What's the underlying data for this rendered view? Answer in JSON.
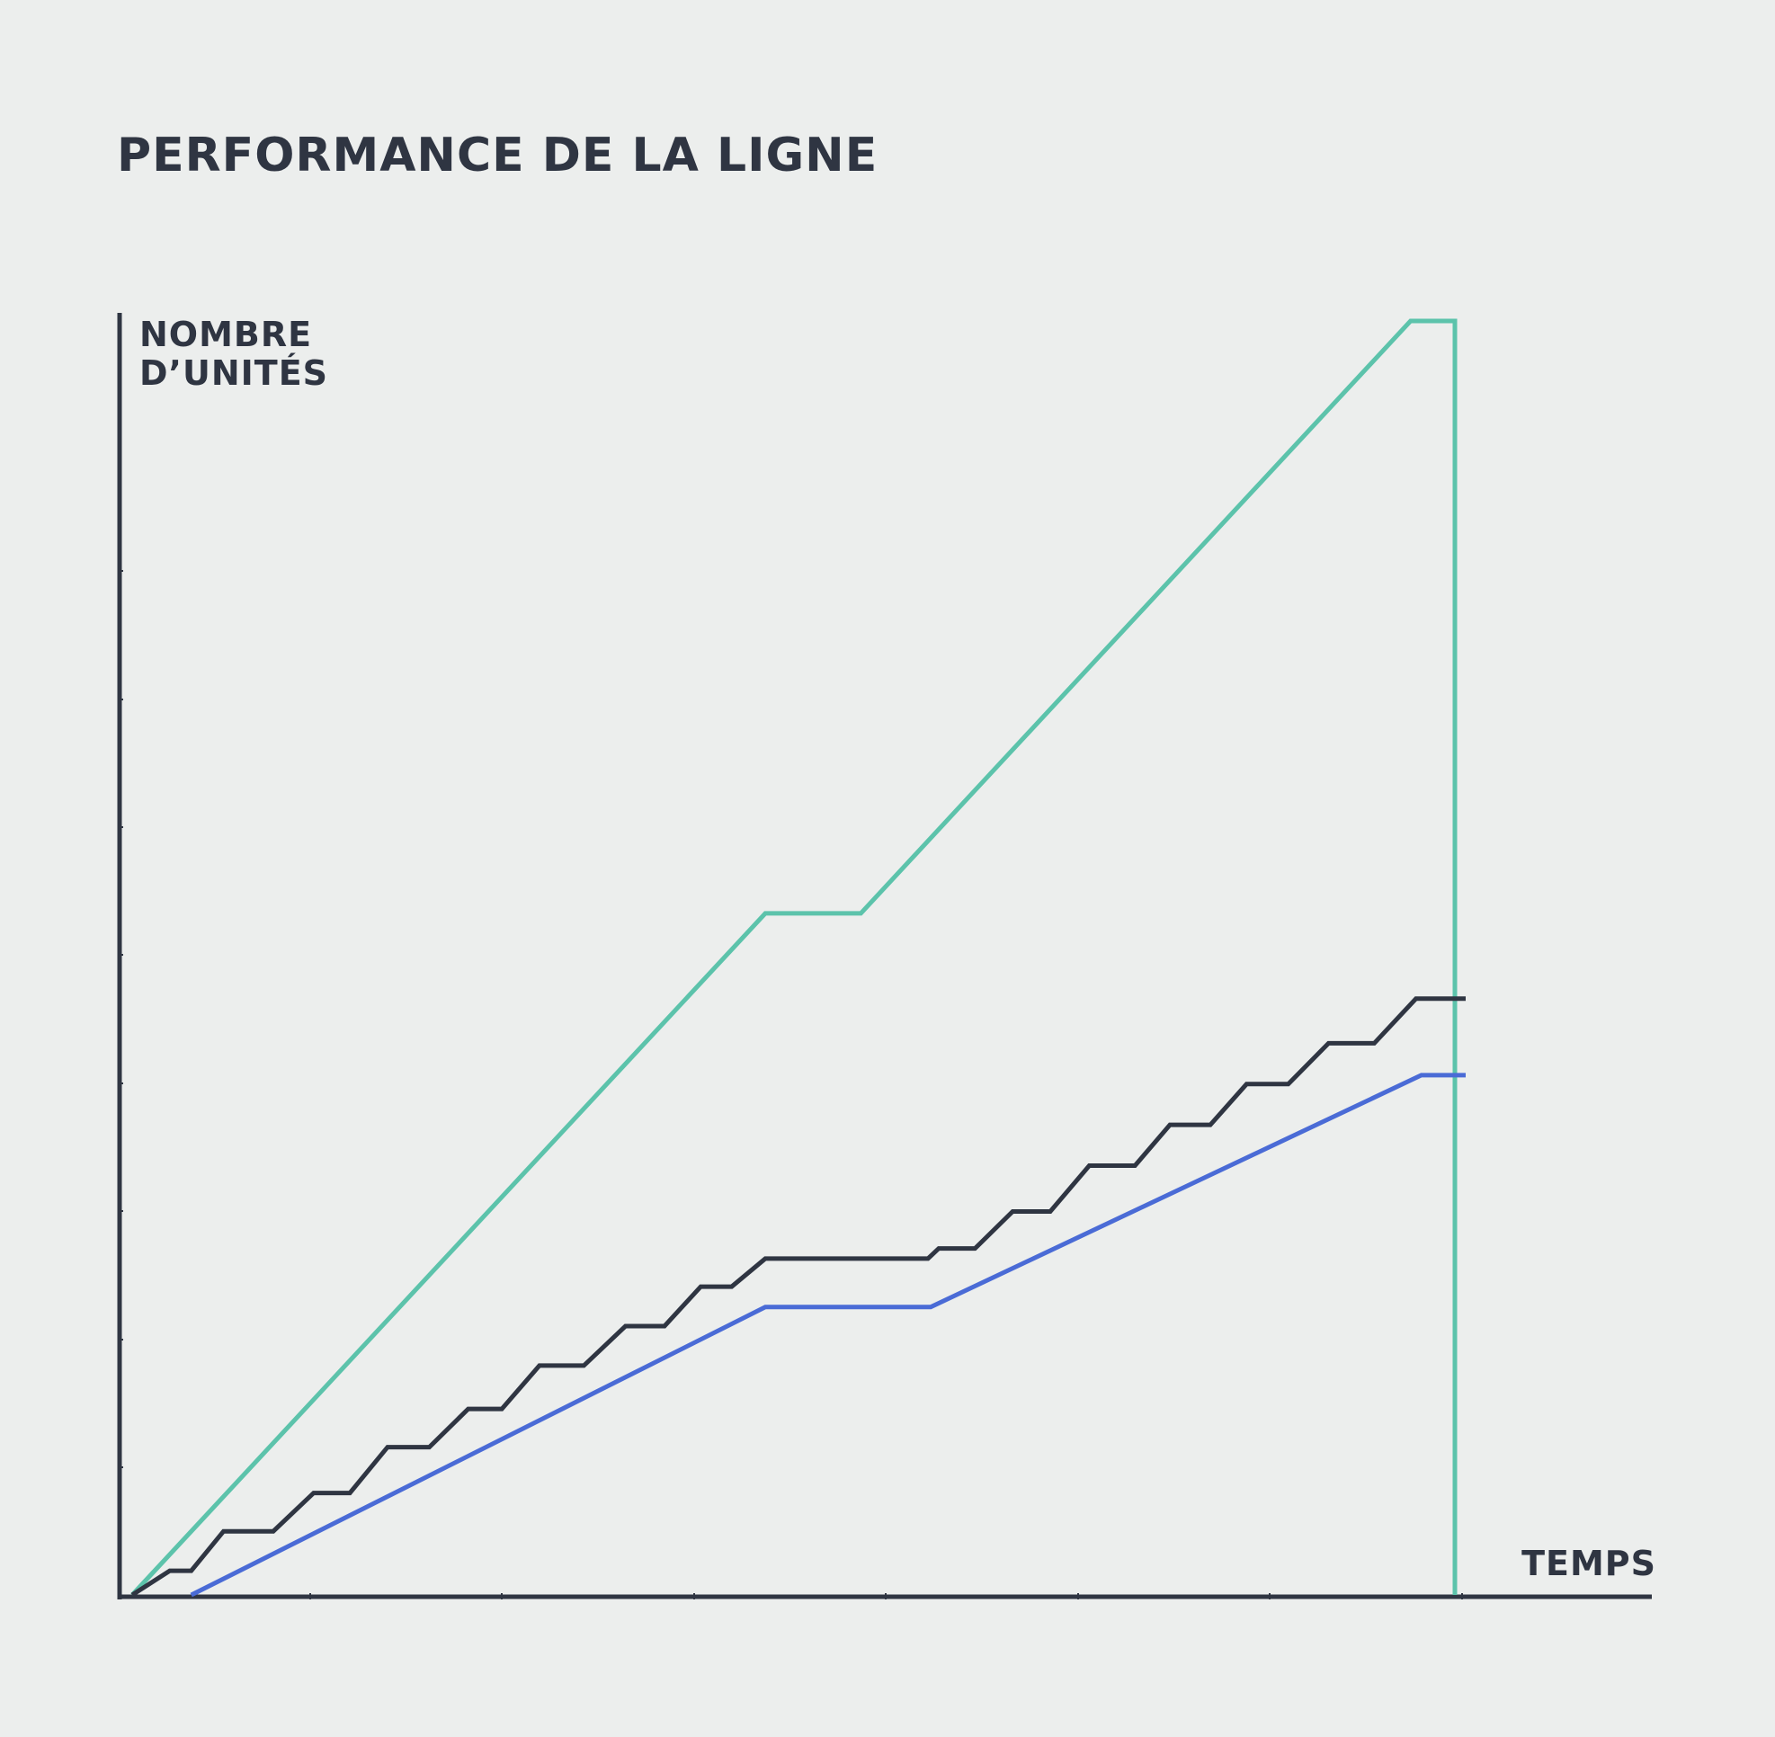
{
  "title": "PERFORMANCE DE LA LIGNE",
  "chart_data": {
    "type": "line",
    "title": "PERFORMANCE DE LA LIGNE",
    "ylabel": [
      "NOMBRE",
      "D’UNITÉS"
    ],
    "xlabel": "TEMPS",
    "xlim": [
      0,
      100
    ],
    "ylim": [
      0,
      100
    ],
    "grid": false,
    "legend": false,
    "series": [
      {
        "color": "#5cc3ab",
        "points": [
          [
            0.8,
            0
          ],
          [
            47.9,
            53.5
          ],
          [
            55,
            53.5
          ],
          [
            95.9,
            100
          ],
          [
            99.2,
            100
          ],
          [
            99.2,
            0
          ]
        ]
      },
      {
        "color": "#2f3542",
        "points": [
          [
            0.8,
            0
          ],
          [
            3.6,
            1.9
          ],
          [
            5.2,
            1.9
          ],
          [
            7.6,
            5
          ],
          [
            11.3,
            5
          ],
          [
            14.3,
            8
          ],
          [
            17,
            8
          ],
          [
            19.8,
            11.6
          ],
          [
            22.9,
            11.6
          ],
          [
            25.8,
            14.6
          ],
          [
            28.3,
            14.6
          ],
          [
            31.1,
            18
          ],
          [
            34.4,
            18
          ],
          [
            37.5,
            21.1
          ],
          [
            40.4,
            21.1
          ],
          [
            43.1,
            24.2
          ],
          [
            45.4,
            24.2
          ],
          [
            47.9,
            26.4
          ],
          [
            60,
            26.4
          ],
          [
            60.8,
            27.2
          ],
          [
            63.5,
            27.2
          ],
          [
            66.3,
            30.1
          ],
          [
            69.1,
            30.1
          ],
          [
            72,
            33.7
          ],
          [
            75.4,
            33.7
          ],
          [
            78,
            36.9
          ],
          [
            81,
            36.9
          ],
          [
            83.7,
            40.1
          ],
          [
            86.8,
            40.1
          ],
          [
            89.8,
            43.3
          ],
          [
            93.2,
            43.3
          ],
          [
            96.3,
            46.8
          ],
          [
            100,
            46.8
          ]
        ]
      },
      {
        "color": "#4a6bd6",
        "points": [
          [
            5.2,
            0
          ],
          [
            47.9,
            22.6
          ],
          [
            60.2,
            22.6
          ],
          [
            96.7,
            40.8
          ],
          [
            100,
            40.8
          ]
        ]
      }
    ]
  }
}
